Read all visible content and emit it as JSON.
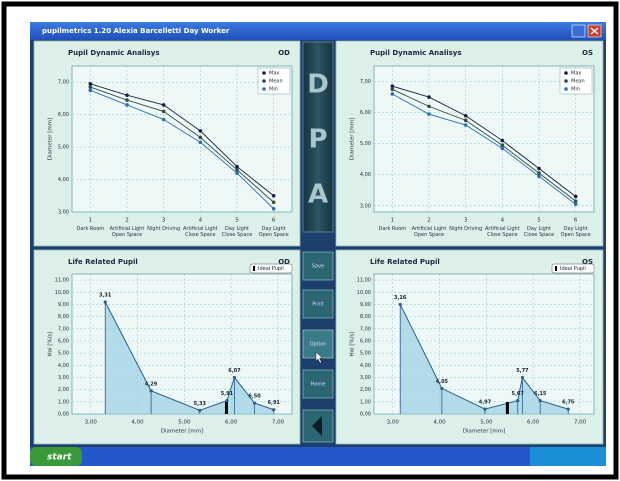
{
  "window": {
    "title": "pupilmetrics 1.20  Alexia Barcelletti  Day Worker"
  },
  "side_panel": {
    "letters": [
      "D",
      "P",
      "A"
    ],
    "buttons": [
      "Save",
      "Print",
      "Option",
      "Home"
    ]
  },
  "taskbar": {
    "start": "start"
  },
  "chart_data": [
    {
      "type": "line",
      "title": "Pupil Dynamic Analisys",
      "eye": "OD",
      "ylabel": "Diameter [mm]",
      "x": [
        1,
        2,
        3,
        4,
        5,
        6
      ],
      "categories": [
        "Dark Room",
        "Artificial Light Open Space",
        "Night Driving",
        "Artificial Light Close Space",
        "Day Light Close Space",
        "Day Light Open Space"
      ],
      "xlim": [
        0.5,
        6.5
      ],
      "ylim": [
        3,
        7.5
      ],
      "yticks": [
        {
          "value": 3,
          "label": "3,00"
        },
        {
          "value": 4,
          "label": "4,00"
        },
        {
          "value": 5,
          "label": "5,00"
        },
        {
          "value": 6,
          "label": "6,00"
        },
        {
          "value": 7,
          "label": "7,00"
        }
      ],
      "grid": true,
      "legend": "upper right",
      "series": [
        {
          "name": "Max",
          "color": "#1b1f45",
          "values": [
            6.95,
            6.6,
            6.3,
            5.5,
            4.4,
            3.5
          ]
        },
        {
          "name": "Mean",
          "color": "#2f4d3c",
          "values": [
            6.85,
            6.45,
            6.1,
            5.3,
            4.3,
            3.3
          ]
        },
        {
          "name": "Min",
          "color": "#2b6fae",
          "values": [
            6.75,
            6.3,
            5.85,
            5.15,
            4.2,
            3.1
          ]
        }
      ]
    },
    {
      "type": "line",
      "title": "Pupil Dynamic Analisys",
      "eye": "OS",
      "ylabel": "Diameter [mm]",
      "x": [
        1,
        2,
        3,
        4,
        5,
        6
      ],
      "categories": [
        "Dark Room",
        "Artificial Light Open Space",
        "Night Driving",
        "Artificial Light Close Space",
        "Day Light Close Space",
        "Day Light Open Space"
      ],
      "xlim": [
        0.5,
        6.5
      ],
      "ylim": [
        2.8,
        7.5
      ],
      "yticks": [
        {
          "value": 3,
          "label": "3,00"
        },
        {
          "value": 4,
          "label": "4,00"
        },
        {
          "value": 5,
          "label": "5,00"
        },
        {
          "value": 6,
          "label": "6,00"
        },
        {
          "value": 7,
          "label": "7,00"
        }
      ],
      "grid": true,
      "legend": "upper right",
      "series": [
        {
          "name": "Max",
          "color": "#1b1f45",
          "values": [
            6.85,
            6.5,
            5.9,
            5.1,
            4.2,
            3.3
          ]
        },
        {
          "name": "Mean",
          "color": "#2f4d3c",
          "values": [
            6.75,
            6.2,
            5.75,
            4.95,
            4.05,
            3.15
          ]
        },
        {
          "name": "Min",
          "color": "#2b6fae",
          "values": [
            6.6,
            5.95,
            5.6,
            4.85,
            3.95,
            3.05
          ]
        }
      ]
    },
    {
      "type": "area",
      "title": "Life Related Pupil",
      "eye": "OD",
      "ylabel": "Hal [%/s]",
      "xlabel": "Diameter [mm]",
      "legend_label": "Ideal Pupil",
      "ideal_x": 5.9,
      "x": [
        3.31,
        4.29,
        5.33,
        5.91,
        6.07,
        6.5,
        6.91
      ],
      "x_labels": [
        "3,31",
        "4,29",
        "5,33",
        "5,91",
        "6,07",
        "6,50",
        "6,91"
      ],
      "values": [
        9.2,
        1.9,
        0.3,
        1.1,
        3.0,
        0.9,
        0.35
      ],
      "color": "#2a5f8a",
      "xlim": [
        2.6,
        7.3
      ],
      "ylim": [
        0,
        11.5
      ],
      "xticks": [
        {
          "value": 3,
          "label": "3,00"
        },
        {
          "value": 4,
          "label": "4,00"
        },
        {
          "value": 5,
          "label": "5,00"
        },
        {
          "value": 6,
          "label": "6,00"
        },
        {
          "value": 7,
          "label": "7,00"
        }
      ],
      "yticks": [
        {
          "value": 0,
          "label": "0,00"
        },
        {
          "value": 1,
          "label": "1,00"
        },
        {
          "value": 2,
          "label": "2,00"
        },
        {
          "value": 3,
          "label": "3,00"
        },
        {
          "value": 4,
          "label": "4,00"
        },
        {
          "value": 5,
          "label": "5,00"
        },
        {
          "value": 6,
          "label": "6,00"
        },
        {
          "value": 7,
          "label": "7,00"
        },
        {
          "value": 8,
          "label": "8,00"
        },
        {
          "value": 9,
          "label": "9,00"
        },
        {
          "value": 10,
          "label": "10,00"
        },
        {
          "value": 11,
          "label": "11,00"
        }
      ],
      "grid": true
    },
    {
      "type": "area",
      "title": "Life Related Pupil",
      "eye": "OS",
      "ylabel": "Hal [%/s]",
      "xlabel": "Diameter [mm]",
      "legend_label": "Ideal Pupil",
      "ideal_x": 5.45,
      "x": [
        3.16,
        4.05,
        4.97,
        5.67,
        5.77,
        6.15,
        6.75
      ],
      "x_labels": [
        "3,16",
        "4,05",
        "4,97",
        "5,67",
        "5,77",
        "6,15",
        "6,75"
      ],
      "values": [
        9.0,
        2.1,
        0.4,
        1.1,
        3.0,
        1.1,
        0.4
      ],
      "color": "#2a5f8a",
      "xlim": [
        2.6,
        7.3
      ],
      "ylim": [
        0,
        11.5
      ],
      "xticks": [
        {
          "value": 3,
          "label": "3,00"
        },
        {
          "value": 4,
          "label": "4,00"
        },
        {
          "value": 5,
          "label": "5,00"
        },
        {
          "value": 6,
          "label": "6,00"
        },
        {
          "value": 7,
          "label": "7,00"
        }
      ],
      "yticks": [
        {
          "value": 0,
          "label": "0,00"
        },
        {
          "value": 1,
          "label": "1,00"
        },
        {
          "value": 2,
          "label": "2,00"
        },
        {
          "value": 3,
          "label": "3,00"
        },
        {
          "value": 4,
          "label": "4,00"
        },
        {
          "value": 5,
          "label": "5,00"
        },
        {
          "value": 6,
          "label": "6,00"
        },
        {
          "value": 7,
          "label": "7,00"
        },
        {
          "value": 8,
          "label": "8,00"
        },
        {
          "value": 9,
          "label": "9,00"
        },
        {
          "value": 10,
          "label": "10,00"
        },
        {
          "value": 11,
          "label": "11,00"
        }
      ],
      "grid": true
    }
  ]
}
